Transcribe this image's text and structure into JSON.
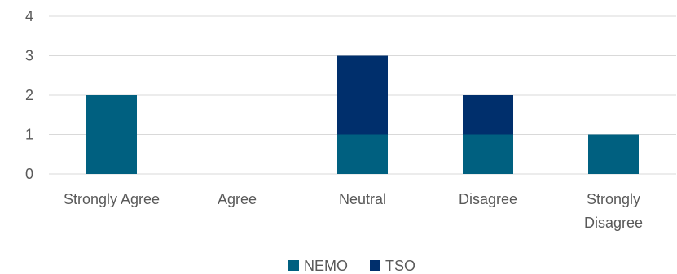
{
  "chart_data": {
    "type": "bar",
    "stacked": true,
    "categories": [
      [
        "Strongly Agree"
      ],
      [
        "Agree"
      ],
      [
        "Neutral"
      ],
      [
        "Disagree"
      ],
      [
        "Strongly",
        "Disagree"
      ]
    ],
    "series": [
      {
        "name": "NEMO",
        "values": [
          2,
          0,
          1,
          1,
          1
        ],
        "color": "#006080"
      },
      {
        "name": "TSO",
        "values": [
          0,
          0,
          2,
          1,
          0
        ],
        "color": "#002f6c"
      }
    ],
    "title": "",
    "xlabel": "",
    "ylabel": "",
    "ylim": [
      0,
      4
    ],
    "yticks": [
      0,
      1,
      2,
      3,
      4
    ],
    "grid": true,
    "gridline_color": "#d9d9d9",
    "legend_position": "bottom"
  }
}
